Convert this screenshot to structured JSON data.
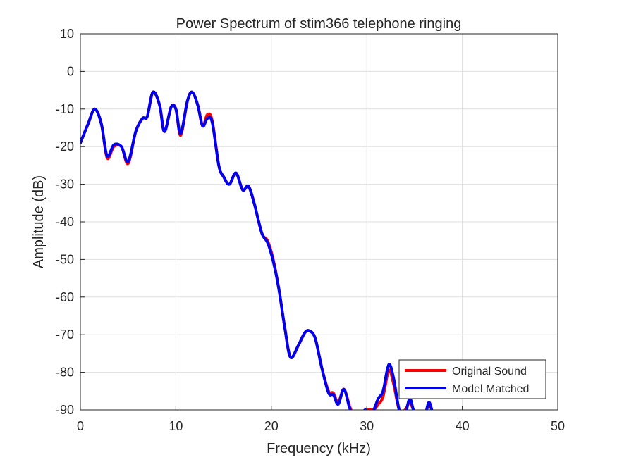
{
  "chart_data": {
    "type": "line",
    "title": "Power Spectrum of stim366 telephone ringing",
    "xlabel": "Frequency (kHz)",
    "ylabel": "Amplitude (dB)",
    "xlim": [
      0,
      50
    ],
    "ylim": [
      -90,
      10
    ],
    "xticks": [
      0,
      10,
      20,
      30,
      40,
      50
    ],
    "yticks": [
      10,
      0,
      -10,
      -20,
      -30,
      -40,
      -50,
      -60,
      -70,
      -80,
      -90
    ],
    "grid": true,
    "legend_position": "bottom-right",
    "series": [
      {
        "name": "Original Sound",
        "color": "#ff0000",
        "points": [
          [
            0,
            -19
          ],
          [
            0.8,
            -14
          ],
          [
            1.5,
            -10
          ],
          [
            2.2,
            -14
          ],
          [
            2.8,
            -23
          ],
          [
            3.5,
            -20
          ],
          [
            4.3,
            -20
          ],
          [
            5.0,
            -24.5
          ],
          [
            5.8,
            -16
          ],
          [
            6.5,
            -12.5
          ],
          [
            7.0,
            -12
          ],
          [
            7.6,
            -5.5
          ],
          [
            8.3,
            -9
          ],
          [
            8.8,
            -16
          ],
          [
            9.5,
            -9.5
          ],
          [
            10.0,
            -10
          ],
          [
            10.5,
            -17
          ],
          [
            11.2,
            -8
          ],
          [
            11.7,
            -5.5
          ],
          [
            12.3,
            -9
          ],
          [
            12.8,
            -14.5
          ],
          [
            13.3,
            -11.5
          ],
          [
            13.8,
            -13
          ],
          [
            14.5,
            -25
          ],
          [
            15.0,
            -28
          ],
          [
            15.6,
            -30
          ],
          [
            16.3,
            -27
          ],
          [
            17.0,
            -31.5
          ],
          [
            17.6,
            -30.5
          ],
          [
            18.2,
            -35
          ],
          [
            19.0,
            -43
          ],
          [
            19.6,
            -45
          ],
          [
            20.2,
            -50
          ],
          [
            20.8,
            -58
          ],
          [
            21.4,
            -68
          ],
          [
            22.0,
            -76
          ],
          [
            22.8,
            -73
          ],
          [
            23.5,
            -69.5
          ],
          [
            24.0,
            -69
          ],
          [
            24.6,
            -71
          ],
          [
            25.3,
            -79
          ],
          [
            26.0,
            -85
          ],
          [
            26.5,
            -85.5
          ],
          [
            27.0,
            -88
          ],
          [
            27.6,
            -84.5
          ],
          [
            28.2,
            -89
          ],
          [
            28.6,
            -91
          ],
          [
            29.5,
            -92
          ],
          [
            30.0,
            -90
          ],
          [
            30.7,
            -90
          ],
          [
            31.2,
            -88.5
          ],
          [
            31.7,
            -86.5
          ],
          [
            32.3,
            -79.5
          ],
          [
            32.8,
            -83
          ],
          [
            33.4,
            -90
          ],
          [
            34.0,
            -90
          ],
          [
            34.5,
            -88
          ],
          [
            34.9,
            -90
          ],
          [
            35.5,
            -91
          ],
          [
            36.1,
            -91
          ],
          [
            36.5,
            -88.5
          ],
          [
            36.8,
            -90
          ]
        ]
      },
      {
        "name": "Model Matched",
        "color": "#0000ee",
        "points": [
          [
            0,
            -19
          ],
          [
            0.8,
            -14
          ],
          [
            1.5,
            -10
          ],
          [
            2.2,
            -14
          ],
          [
            2.8,
            -22.5
          ],
          [
            3.5,
            -19.5
          ],
          [
            4.3,
            -20
          ],
          [
            5.0,
            -24
          ],
          [
            5.8,
            -16
          ],
          [
            6.5,
            -12.5
          ],
          [
            7.0,
            -12
          ],
          [
            7.6,
            -5.5
          ],
          [
            8.3,
            -9
          ],
          [
            8.8,
            -16
          ],
          [
            9.5,
            -9.5
          ],
          [
            10.0,
            -10
          ],
          [
            10.5,
            -16.5
          ],
          [
            11.2,
            -8
          ],
          [
            11.7,
            -5.5
          ],
          [
            12.3,
            -9
          ],
          [
            12.8,
            -14.5
          ],
          [
            13.3,
            -12.5
          ],
          [
            13.8,
            -13.5
          ],
          [
            14.5,
            -25
          ],
          [
            15.0,
            -28
          ],
          [
            15.6,
            -30
          ],
          [
            16.3,
            -27
          ],
          [
            17.0,
            -31.5
          ],
          [
            17.6,
            -30.5
          ],
          [
            18.2,
            -35
          ],
          [
            19.0,
            -43
          ],
          [
            19.6,
            -45.5
          ],
          [
            20.2,
            -50.5
          ],
          [
            20.8,
            -58
          ],
          [
            21.4,
            -68
          ],
          [
            22.0,
            -76
          ],
          [
            22.8,
            -73
          ],
          [
            23.5,
            -69.5
          ],
          [
            24.0,
            -69
          ],
          [
            24.6,
            -71
          ],
          [
            25.3,
            -79
          ],
          [
            26.0,
            -85.5
          ],
          [
            26.5,
            -86
          ],
          [
            27.0,
            -88.5
          ],
          [
            27.6,
            -84.5
          ],
          [
            28.2,
            -89.5
          ],
          [
            28.6,
            -91
          ],
          [
            29.5,
            -92
          ],
          [
            29.8,
            -90
          ],
          [
            30.5,
            -91
          ],
          [
            31.2,
            -87
          ],
          [
            31.7,
            -85
          ],
          [
            32.3,
            -78
          ],
          [
            32.8,
            -81.5
          ],
          [
            33.4,
            -90
          ],
          [
            34.0,
            -91
          ],
          [
            34.5,
            -87
          ],
          [
            34.9,
            -90
          ],
          [
            35.5,
            -91
          ],
          [
            36.1,
            -91
          ],
          [
            36.5,
            -88
          ],
          [
            36.8,
            -90
          ]
        ]
      }
    ]
  }
}
